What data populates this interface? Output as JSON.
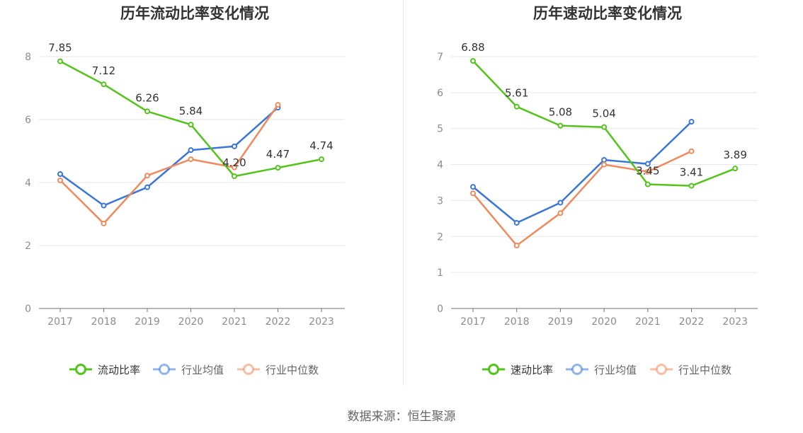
{
  "source": "数据来源：恒生聚源",
  "colors": {
    "main": "#52c41a",
    "avg": "#3a76d8",
    "median": "#f08a5d"
  },
  "chart_data": [
    {
      "type": "line",
      "title": "历年流动比率变化情况",
      "x": [
        "2017",
        "2018",
        "2019",
        "2020",
        "2021",
        "2022",
        "2023"
      ],
      "ylim": [
        0,
        8
      ],
      "yticks": [
        0,
        2,
        4,
        6,
        8
      ],
      "grid": true,
      "legend": "bottom",
      "series": [
        {
          "name": "流动比率",
          "color": "#52c41a",
          "values": [
            7.85,
            7.12,
            6.26,
            5.84,
            4.2,
            4.47,
            4.74
          ],
          "labels": true
        },
        {
          "name": "行业均值",
          "color": "#3a76d8",
          "values": [
            4.27,
            3.27,
            3.85,
            5.03,
            5.15,
            6.38,
            null
          ],
          "labels": false
        },
        {
          "name": "行业中位数",
          "color": "#f08a5d",
          "values": [
            4.07,
            2.7,
            4.22,
            4.74,
            4.48,
            6.47,
            null
          ],
          "labels": false
        }
      ]
    },
    {
      "type": "line",
      "title": "历年速动比率变化情况",
      "x": [
        "2017",
        "2018",
        "2019",
        "2020",
        "2021",
        "2022",
        "2023"
      ],
      "ylim": [
        0,
        7
      ],
      "yticks": [
        0,
        1,
        2,
        3,
        4,
        5,
        6,
        7
      ],
      "grid": true,
      "legend": "bottom",
      "series": [
        {
          "name": "速动比率",
          "color": "#52c41a",
          "values": [
            6.88,
            5.61,
            5.08,
            5.04,
            3.45,
            3.41,
            3.89
          ],
          "labels": true
        },
        {
          "name": "行业均值",
          "color": "#3a76d8",
          "values": [
            3.38,
            2.38,
            2.94,
            4.13,
            4.02,
            5.19,
            null
          ],
          "labels": false
        },
        {
          "name": "行业中位数",
          "color": "#f08a5d",
          "values": [
            3.2,
            1.75,
            2.65,
            4.0,
            3.8,
            4.37,
            null
          ],
          "labels": false
        }
      ]
    }
  ]
}
